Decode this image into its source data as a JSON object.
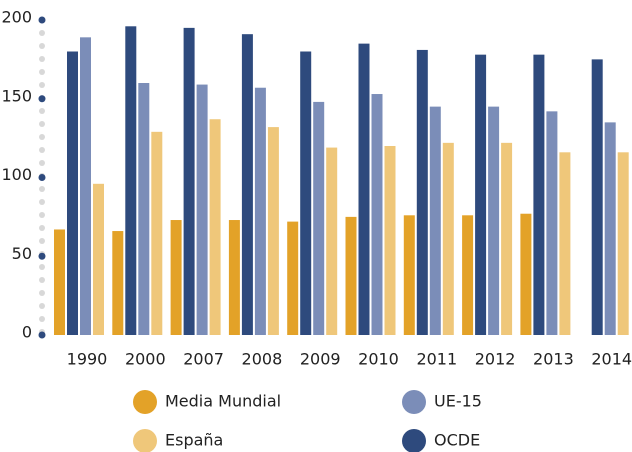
{
  "chart_data": {
    "type": "bar",
    "categories": [
      "1990",
      "2000",
      "2007",
      "2008",
      "2009",
      "2010",
      "2011",
      "2012",
      "2013",
      "2014"
    ],
    "series": [
      {
        "name": "Media Mundial",
        "color": "#e3a228",
        "values": [
          67,
          66,
          73,
          73,
          72,
          75,
          76,
          76,
          77,
          null
        ]
      },
      {
        "name": "OCDE",
        "color": "#2e4a7d",
        "values": [
          180,
          196,
          195,
          191,
          180,
          185,
          181,
          178,
          178,
          175
        ]
      },
      {
        "name": "UE-15",
        "color": "#7b8db8",
        "values": [
          189,
          160,
          159,
          157,
          148,
          153,
          145,
          145,
          142,
          135
        ]
      },
      {
        "name": "España",
        "color": "#efc77a",
        "values": [
          96,
          129,
          137,
          132,
          119,
          120,
          122,
          122,
          116,
          116
        ]
      }
    ],
    "ylim": [
      0,
      200
    ],
    "yticks": [
      0,
      50,
      100,
      150,
      200
    ],
    "tick_color": "#2e4a7d"
  }
}
